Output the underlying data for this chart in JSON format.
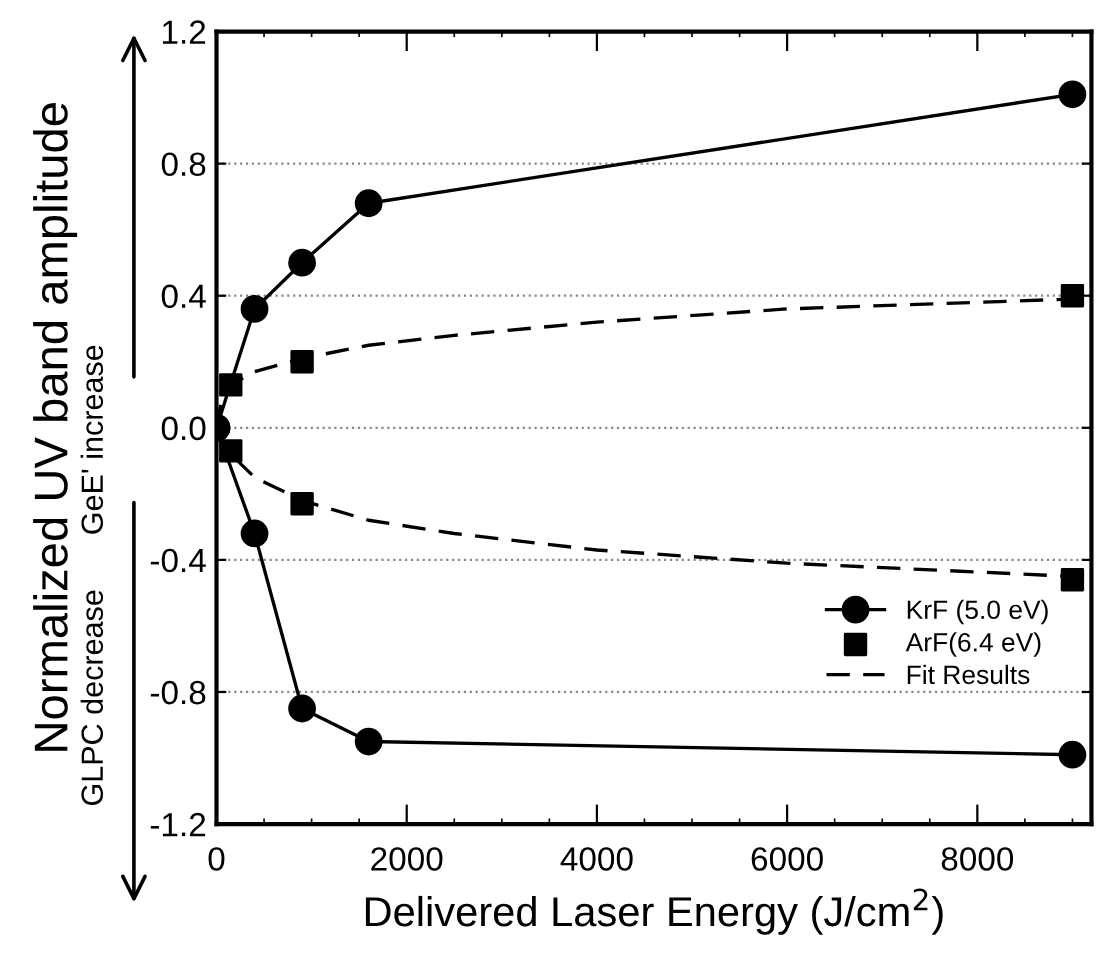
{
  "chart_data": {
    "type": "line",
    "xlabel": "Delivered Laser Energy (J/cm$^{2}$)",
    "ylabel": "Normalized UV band amplitude",
    "xlim": [
      0,
      9200
    ],
    "xticks": [
      0,
      2000,
      4000,
      6000,
      8000
    ],
    "ylim": [
      -1.2,
      1.2
    ],
    "yticks": [
      -1.2,
      -0.8,
      -0.4,
      {
        "value": 0,
        "label": "0.0"
      },
      0.4,
      0.8,
      1.2
    ],
    "grid": "y",
    "legend": "lower right",
    "annotations": [
      "GeE' increase",
      "GLPC decrease"
    ],
    "series": [
      {
        "name": "KrF (5.0 eV)",
        "marker": "circle",
        "line_style": "solid",
        "color": "#000000",
        "x": [
          0,
          400,
          900,
          1600,
          9000
        ],
        "values": [
          0,
          0.36,
          0.5,
          0.68,
          1.01
        ]
      },
      {
        "marker": "circle",
        "line_style": "solid",
        "color": "#000000",
        "x": [
          0,
          400,
          900,
          1600,
          9000
        ],
        "values": [
          0,
          -0.32,
          -0.85,
          -0.95,
          -0.99
        ]
      },
      {
        "name": "ArF(6.4 eV)",
        "type": "scatter",
        "marker": "square",
        "color": "#000000",
        "x": [
          150,
          900,
          9000
        ],
        "values": [
          0.13,
          0.2,
          0.4
        ]
      },
      {
        "type": "scatter",
        "marker": "square",
        "color": "#000000",
        "x": [
          150,
          900,
          9000
        ],
        "values": [
          -0.07,
          -0.23,
          -0.46
        ]
      },
      {
        "name": "Fit Results",
        "marker": "none",
        "line_style": "dashed",
        "color": "#000000",
        "x": [
          0,
          50,
          150,
          400,
          900,
          1600,
          2500,
          4000,
          6000,
          9000
        ],
        "values": [
          0,
          0.08,
          0.13,
          0.17,
          0.21,
          0.25,
          0.28,
          0.32,
          0.36,
          0.39
        ]
      },
      {
        "marker": "none",
        "line_style": "dashed",
        "color": "#000000",
        "x": [
          0,
          50,
          150,
          400,
          900,
          1600,
          2500,
          4000,
          6000,
          9000
        ],
        "values": [
          0,
          -0.04,
          -0.08,
          -0.15,
          -0.22,
          -0.28,
          -0.32,
          -0.37,
          -0.41,
          -0.45
        ]
      }
    ]
  }
}
